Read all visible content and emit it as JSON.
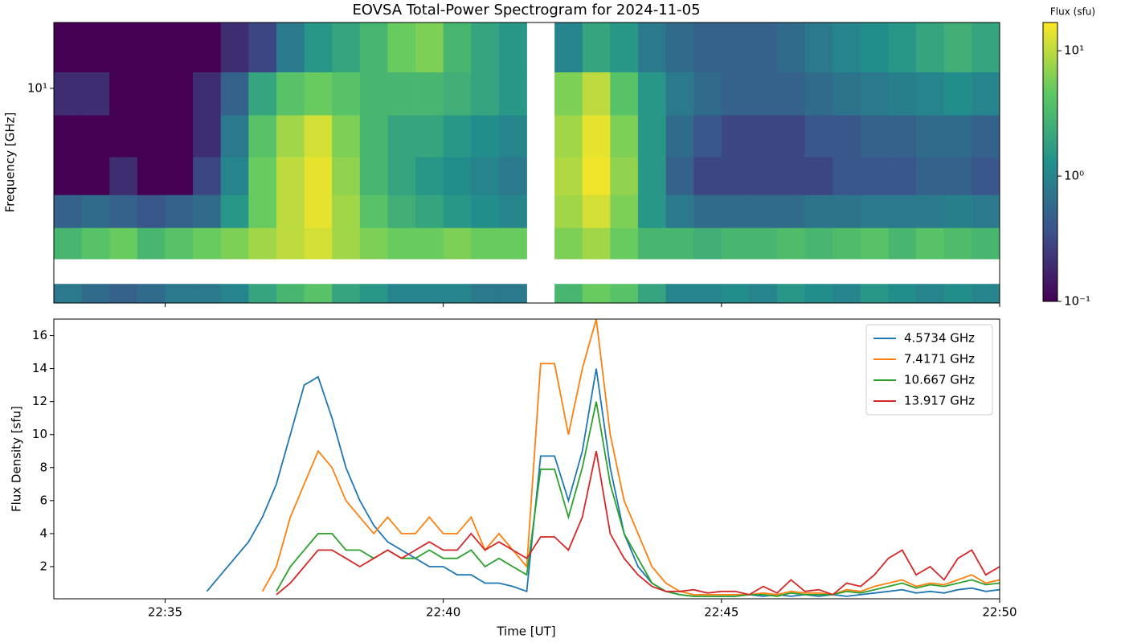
{
  "chart_data": [
    {
      "type": "heatmap",
      "title": "EOVSA Total-Power Spectrogram for 2024-11-05",
      "ylabel": "Frequency [GHz]",
      "x": [
        1353.25,
        1353.75,
        1354.25,
        1354.75,
        1355.25,
        1355.75,
        1356.25,
        1356.75,
        1357.25,
        1357.75,
        1358.25,
        1358.75,
        1359.25,
        1359.75,
        1360.25,
        1360.75,
        1361.25,
        1361.75,
        1362.25,
        1362.75,
        1363.25,
        1363.75,
        1364.25,
        1364.75,
        1365.25,
        1365.75,
        1366.25,
        1366.75,
        1367.25,
        1367.75,
        1368.25,
        1368.75,
        1369.25,
        1369.75
      ],
      "y": [
        14,
        9.5,
        6.5,
        4.5,
        3.3,
        2.5,
        1.9,
        1.6
      ],
      "values": [
        [
          0.1,
          0.1,
          0.1,
          0.1,
          0.1,
          0.1,
          0.2,
          0.3,
          0.8,
          1.5,
          2,
          3,
          5,
          6,
          3,
          2,
          1.5,
          null,
          1,
          2,
          1.5,
          0.8,
          0.6,
          0.5,
          0.5,
          0.5,
          0.6,
          0.8,
          1,
          1.2,
          1.5,
          2,
          2.5,
          2
        ],
        [
          0.2,
          0.2,
          0.1,
          0.1,
          0.1,
          0.2,
          0.5,
          2,
          4,
          5,
          4,
          3,
          3,
          3,
          2.5,
          2,
          1.5,
          null,
          6,
          10,
          4,
          1.5,
          0.8,
          0.6,
          0.5,
          0.5,
          0.5,
          0.6,
          0.7,
          0.8,
          0.9,
          1,
          1.2,
          1
        ],
        [
          0.1,
          0.1,
          0.1,
          0.1,
          0.1,
          0.2,
          0.8,
          4,
          8,
          12,
          6,
          3,
          2,
          2,
          1.5,
          1.2,
          1,
          null,
          8,
          14,
          6,
          1.5,
          0.6,
          0.4,
          0.3,
          0.3,
          0.3,
          0.4,
          0.4,
          0.5,
          0.5,
          0.6,
          0.6,
          0.5
        ],
        [
          0.1,
          0.1,
          0.2,
          0.1,
          0.1,
          0.3,
          1,
          5,
          10,
          14,
          7,
          3,
          2,
          1.5,
          1.2,
          1,
          0.8,
          null,
          9,
          15,
          7,
          1.5,
          0.5,
          0.3,
          0.3,
          0.3,
          0.3,
          0.3,
          0.4,
          0.4,
          0.4,
          0.5,
          0.5,
          0.4
        ],
        [
          0.5,
          0.6,
          0.5,
          0.4,
          0.5,
          0.6,
          1.5,
          5,
          10,
          14,
          8,
          4,
          2.5,
          2,
          1.5,
          1.2,
          1,
          null,
          8,
          12,
          6,
          1.5,
          0.8,
          0.6,
          0.6,
          0.6,
          0.6,
          0.7,
          0.7,
          0.8,
          0.8,
          0.8,
          0.9,
          0.8
        ],
        [
          3,
          4,
          5,
          3,
          4,
          5,
          6,
          8,
          10,
          12,
          8,
          6,
          5,
          5,
          6,
          5,
          5,
          null,
          6,
          8,
          5,
          3,
          3,
          2.5,
          3,
          3,
          3.5,
          3,
          3.5,
          4,
          3,
          4,
          3.5,
          3
        ],
        [
          null,
          null,
          null,
          null,
          null,
          null,
          null,
          null,
          null,
          null,
          null,
          null,
          null,
          null,
          null,
          null,
          null,
          null,
          null,
          null,
          null,
          null,
          null,
          null,
          null,
          null,
          null,
          null,
          null,
          null,
          null,
          null,
          null,
          null
        ],
        [
          0.8,
          0.6,
          0.5,
          0.6,
          0.8,
          0.8,
          1,
          2,
          3,
          4,
          2,
          1.5,
          1,
          1,
          1,
          0.8,
          0.8,
          null,
          3,
          5,
          4,
          2,
          1,
          1,
          1.2,
          1,
          1.5,
          1.2,
          1,
          1.5,
          1.2,
          1,
          1.2,
          1
        ]
      ],
      "xlim": [
        1353,
        1370
      ],
      "xticks": [
        1355,
        1360,
        1365,
        1370
      ],
      "ylim": [
        1.47,
        18
      ],
      "log_y": true,
      "yticks": [
        {
          "value": 10,
          "label": "10¹"
        }
      ],
      "colorbar": {
        "label": "Flux (sfu)",
        "colormap": "viridis",
        "log": true,
        "clim": [
          0.1,
          16.8
        ],
        "ticks": [
          {
            "value": 0.1,
            "label": "10⁻¹"
          },
          {
            "value": 1,
            "label": "10⁰"
          },
          {
            "value": 10,
            "label": "10¹"
          }
        ]
      }
    },
    {
      "type": "line",
      "xlabel": "Time [UT]",
      "ylabel": "Flux Density [sfu]",
      "x": [
        1355.75,
        1356,
        1356.25,
        1356.5,
        1356.75,
        1357,
        1357.25,
        1357.5,
        1357.75,
        1358,
        1358.25,
        1358.5,
        1358.75,
        1359,
        1359.25,
        1359.5,
        1359.75,
        1360,
        1360.25,
        1360.5,
        1360.75,
        1361,
        1361.25,
        1361.5,
        1361.75,
        1362,
        1362.25,
        1362.5,
        1362.75,
        1363,
        1363.25,
        1363.5,
        1363.75,
        1364,
        1364.25,
        1364.5,
        1364.75,
        1365,
        1365.25,
        1365.5,
        1365.75,
        1366,
        1366.25,
        1366.5,
        1366.75,
        1367,
        1367.25,
        1367.5,
        1367.75,
        1368,
        1368.25,
        1368.5,
        1368.75,
        1369,
        1369.25,
        1369.5,
        1369.75,
        1370
      ],
      "series": [
        {
          "name": "4.5734 GHz",
          "color": "#1f77b4",
          "values": [
            0.5,
            1.5,
            2.5,
            3.5,
            5,
            7,
            10,
            13,
            13.5,
            11,
            8,
            6,
            4.5,
            3.5,
            3,
            2.5,
            2,
            2,
            1.5,
            1.5,
            1,
            1,
            0.8,
            0.5,
            8.7,
            8.7,
            6,
            9,
            14,
            8,
            4,
            2,
            1,
            0.5,
            0.3,
            0.2,
            0.2,
            0.2,
            0.2,
            0.3,
            0.2,
            0.3,
            0.2,
            0.3,
            0.2,
            0.3,
            0.2,
            0.3,
            0.4,
            0.5,
            0.6,
            0.4,
            0.5,
            0.4,
            0.6,
            0.7,
            0.5,
            0.6
          ]
        },
        {
          "name": "7.4171 GHz",
          "color": "#ff7f0e",
          "values": [
            null,
            null,
            null,
            null,
            0.5,
            2,
            5,
            7,
            9,
            8,
            6,
            5,
            4,
            5,
            4,
            4,
            5,
            4,
            4,
            5,
            3,
            4,
            3,
            2,
            14.3,
            14.3,
            10,
            14,
            17,
            10,
            6,
            4,
            2,
            1,
            0.5,
            0.3,
            0.3,
            0.3,
            0.3,
            0.3,
            0.4,
            0.3,
            0.5,
            0.4,
            0.4,
            0.3,
            0.6,
            0.5,
            0.8,
            1,
            1.2,
            0.8,
            1,
            0.9,
            1.2,
            1.5,
            1,
            1.2
          ]
        },
        {
          "name": "10.667 GHz",
          "color": "#2ca02c",
          "values": [
            null,
            null,
            null,
            null,
            null,
            0.5,
            2,
            3,
            4,
            4,
            3,
            3,
            2.5,
            3,
            2.5,
            2.5,
            3,
            2.5,
            2.5,
            3,
            2,
            2.5,
            2,
            1.5,
            7.9,
            7.9,
            5,
            8,
            12,
            7,
            4,
            2.5,
            1,
            0.5,
            0.3,
            0.2,
            0.2,
            0.2,
            0.2,
            0.3,
            0.3,
            0.2,
            0.4,
            0.3,
            0.3,
            0.3,
            0.5,
            0.4,
            0.6,
            0.8,
            1,
            0.7,
            0.9,
            0.8,
            1,
            1.2,
            0.9,
            1
          ]
        },
        {
          "name": "13.917 GHz",
          "color": "#d62728",
          "values": [
            null,
            null,
            null,
            null,
            null,
            0.3,
            1,
            2,
            3,
            3,
            2.5,
            2,
            2.5,
            3,
            2.5,
            3,
            3.5,
            3,
            3,
            4,
            3,
            3.5,
            3,
            2.5,
            3.8,
            3.8,
            3,
            5,
            9,
            4,
            2.5,
            1.5,
            0.8,
            0.5,
            0.5,
            0.6,
            0.4,
            0.5,
            0.5,
            0.3,
            0.8,
            0.4,
            1.2,
            0.5,
            0.6,
            0.3,
            1,
            0.8,
            1.5,
            2.5,
            3,
            1.5,
            2,
            1.2,
            2.5,
            3,
            1.5,
            2
          ]
        }
      ],
      "xlim": [
        1353,
        1370
      ],
      "xticks": [
        {
          "value": 1355,
          "label": "22:35"
        },
        {
          "value": 1360,
          "label": "22:40"
        },
        {
          "value": 1365,
          "label": "22:45"
        },
        {
          "value": 1370,
          "label": "22:50"
        }
      ],
      "ylim": [
        0.05,
        17
      ],
      "yticks": [
        2,
        4,
        6,
        8,
        10,
        12,
        14,
        16
      ],
      "legend": "upper right"
    }
  ]
}
